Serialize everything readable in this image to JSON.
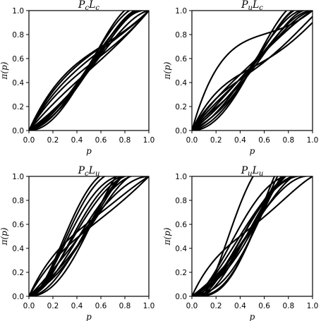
{
  "chart_data": [
    {
      "type": "line",
      "title": {
        "main": "P",
        "sub": "c",
        "main2": "L",
        "sub2": "c"
      },
      "xlabel": "p",
      "ylabel": "π(p)",
      "xlim": [
        0.0,
        1.0
      ],
      "ylim": [
        0.0,
        1.0
      ],
      "xticks": [
        "0.0",
        "0.2",
        "0.4",
        "0.6",
        "0.8",
        "1.0"
      ],
      "yticks": [
        "0.0",
        "0.2",
        "0.4",
        "0.6",
        "0.8",
        "1.0"
      ],
      "grid": false,
      "series": [
        {
          "ctrl": [
            0.0,
            0.55,
            0.66,
            0.74,
            1.0
          ]
        },
        {
          "ctrl": [
            0.0,
            0.5,
            0.65,
            0.76,
            1.0
          ]
        },
        {
          "ctrl": [
            0.0,
            0.45,
            0.6,
            0.76,
            1.0
          ]
        },
        {
          "ctrl": [
            0.0,
            0.4,
            0.55,
            0.7,
            1.0
          ]
        },
        {
          "ctrl": [
            0.0,
            0.3,
            0.5,
            0.7,
            1.0
          ]
        },
        {
          "ctrl": [
            0.0,
            0.15,
            0.4,
            1.1,
            1.0
          ]
        },
        {
          "ctrl": [
            0.0,
            0.1,
            0.35,
            1.15,
            1.0
          ]
        },
        {
          "ctrl": [
            0.0,
            0.05,
            0.45,
            1.2,
            1.0
          ]
        },
        {
          "ctrl": [
            0.0,
            0.2,
            0.4,
            0.95,
            1.0
          ]
        },
        {
          "ctrl": [
            0.0,
            0.1,
            0.5,
            1.05,
            1.0
          ]
        },
        {
          "ctrl": [
            0.0,
            0.2,
            0.3,
            1.1,
            1.0
          ]
        },
        {
          "ctrl": [
            0.0,
            0.0,
            0.4,
            1.3,
            1.0
          ]
        }
      ]
    },
    {
      "type": "line",
      "title": {
        "main": "P",
        "sub": "u",
        "main2": "L",
        "sub2": "c"
      },
      "xlabel": "p",
      "ylabel": "π(p)",
      "xlim": [
        0.0,
        1.0
      ],
      "ylim": [
        0.0,
        1.0
      ],
      "xticks": [
        "0.0",
        "0.2",
        "0.4",
        "0.6",
        "0.8",
        "1.0"
      ],
      "yticks": [
        "0.0",
        "0.2",
        "0.4",
        "0.6",
        "0.8",
        "1.0"
      ],
      "grid": false,
      "series": [
        {
          "ctrl": [
            0.0,
            0.9,
            0.75,
            0.8,
            1.0
          ]
        },
        {
          "ctrl": [
            0.0,
            0.55,
            0.45,
            0.65,
            0.9
          ]
        },
        {
          "ctrl": [
            0.0,
            0.45,
            0.4,
            0.7,
            0.95
          ]
        },
        {
          "ctrl": [
            0.0,
            0.4,
            0.5,
            0.85,
            1.0
          ]
        },
        {
          "ctrl": [
            0.0,
            0.35,
            0.4,
            0.95,
            1.0
          ]
        },
        {
          "ctrl": [
            0.0,
            0.2,
            0.45,
            1.0,
            1.0
          ]
        },
        {
          "ctrl": [
            0.0,
            0.1,
            0.5,
            1.1,
            1.0
          ]
        },
        {
          "ctrl": [
            0.0,
            0.05,
            0.4,
            1.2,
            1.0
          ]
        },
        {
          "ctrl": [
            0.0,
            0.15,
            0.3,
            1.25,
            1.0
          ]
        },
        {
          "ctrl": [
            0.0,
            0.0,
            0.35,
            1.35,
            1.0
          ]
        },
        {
          "ctrl": [
            0.0,
            0.25,
            0.55,
            0.85,
            1.0
          ]
        },
        {
          "ctrl": [
            0.0,
            0.3,
            0.25,
            1.1,
            1.0
          ]
        }
      ]
    },
    {
      "type": "line",
      "title": {
        "main": "P",
        "sub": "c",
        "main2": "L",
        "sub2": "u"
      },
      "xlabel": "p",
      "ylabel": "π(p)",
      "xlim": [
        0.0,
        1.0
      ],
      "ylim": [
        0.0,
        1.0
      ],
      "xticks": [
        "0.0",
        "0.2",
        "0.4",
        "0.6",
        "0.8",
        "1.0"
      ],
      "yticks": [
        "0.0",
        "0.2",
        "0.4",
        "0.6",
        "0.8",
        "1.0"
      ],
      "grid": false,
      "series": [
        {
          "ctrl": [
            0.0,
            0.0,
            1.6,
            0.95,
            1.0
          ]
        },
        {
          "ctrl": [
            0.0,
            0.0,
            1.45,
            1.0,
            1.0
          ]
        },
        {
          "ctrl": [
            0.0,
            0.05,
            1.25,
            1.0,
            1.0
          ]
        },
        {
          "ctrl": [
            0.0,
            0.0,
            1.1,
            1.05,
            1.0
          ]
        },
        {
          "ctrl": [
            0.0,
            0.1,
            0.9,
            1.1,
            1.0
          ]
        },
        {
          "ctrl": [
            0.0,
            0.05,
            0.75,
            1.1,
            1.0
          ]
        },
        {
          "ctrl": [
            0.0,
            0.25,
            0.6,
            1.0,
            1.0
          ]
        },
        {
          "ctrl": [
            0.0,
            0.0,
            0.55,
            1.3,
            1.0
          ]
        },
        {
          "ctrl": [
            0.0,
            0.15,
            0.35,
            1.35,
            1.0
          ]
        },
        {
          "ctrl": [
            0.0,
            0.0,
            0.3,
            1.55,
            1.0
          ]
        },
        {
          "ctrl": [
            0.0,
            0.55,
            0.55,
            0.85,
            1.0
          ]
        },
        {
          "ctrl": [
            0.0,
            0.45,
            0.55,
            0.75,
            1.0
          ]
        },
        {
          "ctrl": [
            0.0,
            0.2,
            0.4,
            1.2,
            1.0
          ]
        }
      ]
    },
    {
      "type": "line",
      "title": {
        "main": "P",
        "sub": "u",
        "main2": "L",
        "sub2": "u"
      },
      "xlabel": "p",
      "ylabel": "π(p)",
      "xlim": [
        0.0,
        1.0
      ],
      "ylim": [
        0.0,
        1.0
      ],
      "xticks": [
        "0.0",
        "0.2",
        "0.4",
        "0.6",
        "0.8",
        "1.0"
      ],
      "yticks": [
        "0.0",
        "0.2",
        "0.4",
        "0.6",
        "0.8",
        "1.0"
      ],
      "grid": false,
      "series": [
        {
          "ctrl": [
            0.0,
            -0.3,
            2.0,
            1.0,
            1.0
          ]
        },
        {
          "ctrl": [
            0.0,
            0.55,
            0.45,
            0.85,
            1.0
          ]
        },
        {
          "ctrl": [
            0.0,
            0.05,
            1.1,
            1.05,
            1.0
          ]
        },
        {
          "ctrl": [
            0.0,
            0.1,
            0.8,
            1.1,
            1.0
          ]
        },
        {
          "ctrl": [
            0.0,
            0.0,
            0.75,
            1.2,
            1.0
          ]
        },
        {
          "ctrl": [
            0.0,
            0.05,
            0.5,
            1.3,
            1.0
          ]
        },
        {
          "ctrl": [
            0.0,
            0.2,
            0.4,
            1.2,
            1.0
          ]
        },
        {
          "ctrl": [
            0.0,
            -0.1,
            0.65,
            1.25,
            1.0
          ]
        },
        {
          "ctrl": [
            0.0,
            0.15,
            0.2,
            1.5,
            1.0
          ]
        },
        {
          "ctrl": [
            0.0,
            0.05,
            0.1,
            1.6,
            1.0
          ]
        },
        {
          "ctrl": [
            0.0,
            0.0,
            0.0,
            1.8,
            1.0
          ]
        },
        {
          "ctrl": [
            0.0,
            0.0,
            -0.1,
            2.0,
            1.0
          ]
        },
        {
          "ctrl": [
            0.0,
            -0.1,
            0.9,
            1.05,
            1.0
          ]
        },
        {
          "ctrl": [
            0.0,
            0.1,
            0.6,
            1.05,
            1.0
          ]
        }
      ]
    }
  ]
}
